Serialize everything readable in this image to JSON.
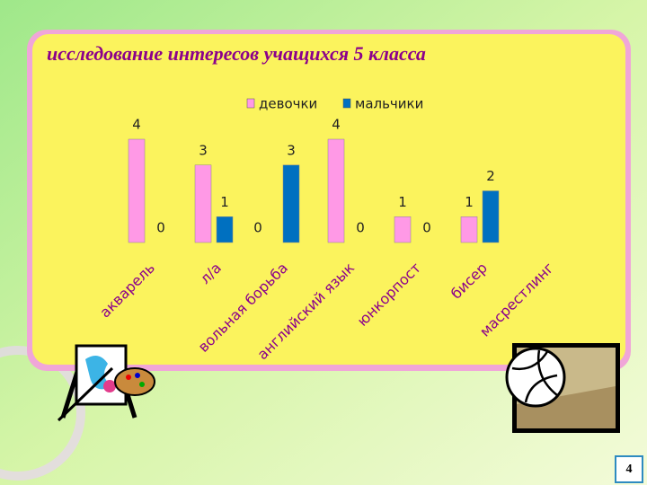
{
  "chart_data": {
    "type": "bar",
    "title": "исследование  интересов учащихся 5 класса",
    "categories": [
      "акварель",
      "л/а",
      "вольная борьба",
      "английский язык",
      "юнкорпост",
      "бисер",
      "масрестлинг"
    ],
    "series": [
      {
        "name": "девочки",
        "color": "#ff99e6",
        "values": [
          4,
          3,
          0,
          4,
          1,
          1,
          null
        ]
      },
      {
        "name": "мальчики",
        "color": "#0070c0",
        "values": [
          0,
          1,
          3,
          0,
          0,
          2,
          null
        ]
      }
    ],
    "ylim": [
      0,
      4
    ]
  },
  "page_number": "4"
}
